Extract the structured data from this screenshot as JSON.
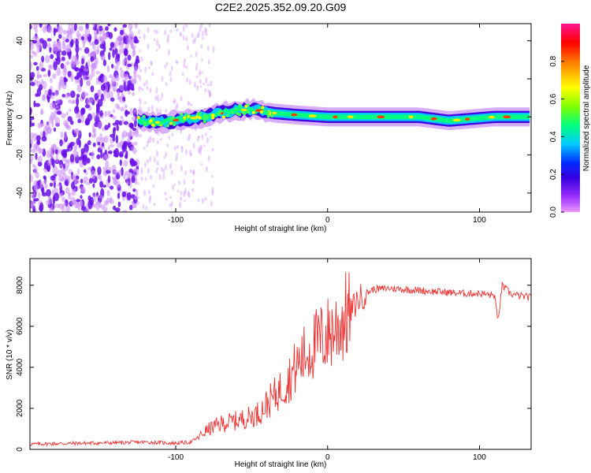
{
  "title": "C2E2.2025.352.09.20.G09",
  "chart_data": [
    {
      "type": "heatmap",
      "xlabel": "Height of straight line (km)",
      "ylabel": "Frequency (Hz)",
      "xlim": [
        -196,
        134
      ],
      "ylim": [
        -50,
        49
      ],
      "xticks": [
        -100,
        0,
        100
      ],
      "yticks": [
        -40,
        -20,
        0,
        20,
        40
      ],
      "colorbar": {
        "label": "Normalized spectral amplitude",
        "range": [
          0,
          1
        ],
        "ticks": [
          "0.0",
          "0.2",
          "0.4",
          "0.6",
          "0.8"
        ],
        "tick_values": [
          0.0,
          0.2,
          0.4,
          0.6,
          0.8
        ],
        "colors": [
          "#ee99ff",
          "#9b30ff",
          "#3a00e0",
          "#0028ff",
          "#00c8ff",
          "#00ff7f",
          "#7fff00",
          "#ffff00",
          "#ff8c00",
          "#ff0000",
          "#ff1493"
        ]
      },
      "noise_region_xmax": -125,
      "band_ridge": [
        {
          "x": -125,
          "y": -2
        },
        {
          "x": -110,
          "y": -3
        },
        {
          "x": -95,
          "y": -1
        },
        {
          "x": -80,
          "y": 0
        },
        {
          "x": -65,
          "y": 3
        },
        {
          "x": -50,
          "y": 4
        },
        {
          "x": -35,
          "y": 2
        },
        {
          "x": -20,
          "y": 1
        },
        {
          "x": 0,
          "y": 0
        },
        {
          "x": 20,
          "y": 0
        },
        {
          "x": 40,
          "y": 0
        },
        {
          "x": 60,
          "y": 0
        },
        {
          "x": 80,
          "y": -2
        },
        {
          "x": 95,
          "y": -1
        },
        {
          "x": 110,
          "y": 0
        },
        {
          "x": 134,
          "y": 0
        }
      ]
    },
    {
      "type": "line",
      "xlabel": "Height of straight line (km)",
      "ylabel": "SNR (10 * v/v)",
      "xlim": [
        -196,
        134
      ],
      "ylim": [
        0,
        9300
      ],
      "xticks": [
        -100,
        0,
        100
      ],
      "yticks": [
        0,
        2000,
        4000,
        6000,
        8000
      ],
      "color": "#ee3333",
      "series": [
        {
          "name": "SNR",
          "x": [
            -196,
            -180,
            -160,
            -140,
            -120,
            -100,
            -90,
            -85,
            -80,
            -75,
            -70,
            -60,
            -50,
            -45,
            -40,
            -35,
            -30,
            -25,
            -20,
            -15,
            -10,
            -5,
            0,
            5,
            10,
            15,
            20,
            25,
            30,
            40,
            50,
            60,
            70,
            80,
            90,
            100,
            110,
            112,
            115,
            120,
            125,
            134
          ],
          "values": [
            250,
            280,
            300,
            320,
            350,
            300,
            350,
            600,
            900,
            1100,
            1250,
            1400,
            1600,
            1800,
            2200,
            2600,
            3000,
            3500,
            4100,
            4600,
            5000,
            5300,
            5600,
            5900,
            6300,
            6700,
            7300,
            7600,
            7800,
            7850,
            7800,
            7750,
            7700,
            7650,
            7600,
            7600,
            7500,
            6200,
            8000,
            7600,
            7500,
            7400
          ]
        }
      ]
    }
  ]
}
